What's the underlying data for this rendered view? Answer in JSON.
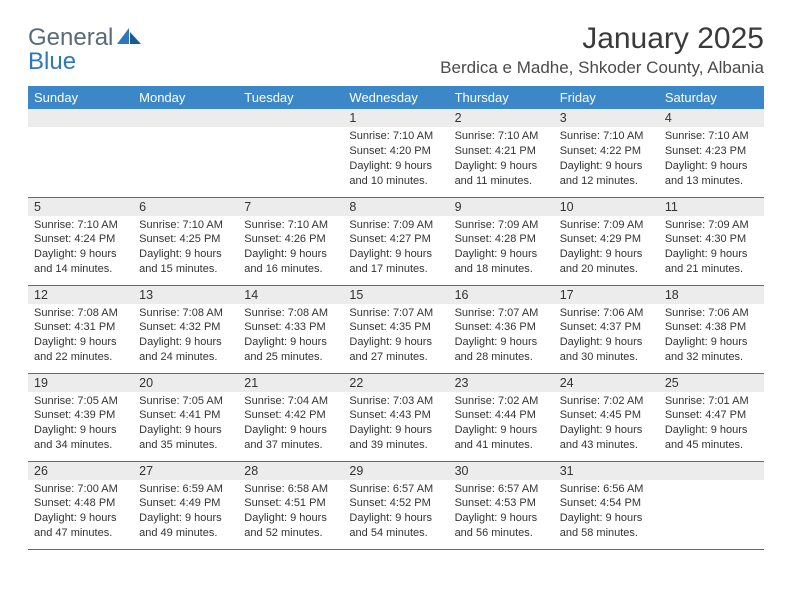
{
  "logo": {
    "word1": "General",
    "word2": "Blue"
  },
  "title": "January 2025",
  "location": "Berdica e Madhe, Shkoder County, Albania",
  "colors": {
    "header_bg": "#3b87c8",
    "header_text": "#ffffff",
    "daynum_bg": "#ececec",
    "rule": "#2d78bc",
    "logo_gray": "#5a6a78",
    "logo_blue": "#2d78bc"
  },
  "daysOfWeek": [
    "Sunday",
    "Monday",
    "Tuesday",
    "Wednesday",
    "Thursday",
    "Friday",
    "Saturday"
  ],
  "weeks": [
    [
      {
        "n": "",
        "sr": "",
        "ss": "",
        "dl1": "",
        "dl2": ""
      },
      {
        "n": "",
        "sr": "",
        "ss": "",
        "dl1": "",
        "dl2": ""
      },
      {
        "n": "",
        "sr": "",
        "ss": "",
        "dl1": "",
        "dl2": ""
      },
      {
        "n": "1",
        "sr": "Sunrise: 7:10 AM",
        "ss": "Sunset: 4:20 PM",
        "dl1": "Daylight: 9 hours",
        "dl2": "and 10 minutes."
      },
      {
        "n": "2",
        "sr": "Sunrise: 7:10 AM",
        "ss": "Sunset: 4:21 PM",
        "dl1": "Daylight: 9 hours",
        "dl2": "and 11 minutes."
      },
      {
        "n": "3",
        "sr": "Sunrise: 7:10 AM",
        "ss": "Sunset: 4:22 PM",
        "dl1": "Daylight: 9 hours",
        "dl2": "and 12 minutes."
      },
      {
        "n": "4",
        "sr": "Sunrise: 7:10 AM",
        "ss": "Sunset: 4:23 PM",
        "dl1": "Daylight: 9 hours",
        "dl2": "and 13 minutes."
      }
    ],
    [
      {
        "n": "5",
        "sr": "Sunrise: 7:10 AM",
        "ss": "Sunset: 4:24 PM",
        "dl1": "Daylight: 9 hours",
        "dl2": "and 14 minutes."
      },
      {
        "n": "6",
        "sr": "Sunrise: 7:10 AM",
        "ss": "Sunset: 4:25 PM",
        "dl1": "Daylight: 9 hours",
        "dl2": "and 15 minutes."
      },
      {
        "n": "7",
        "sr": "Sunrise: 7:10 AM",
        "ss": "Sunset: 4:26 PM",
        "dl1": "Daylight: 9 hours",
        "dl2": "and 16 minutes."
      },
      {
        "n": "8",
        "sr": "Sunrise: 7:09 AM",
        "ss": "Sunset: 4:27 PM",
        "dl1": "Daylight: 9 hours",
        "dl2": "and 17 minutes."
      },
      {
        "n": "9",
        "sr": "Sunrise: 7:09 AM",
        "ss": "Sunset: 4:28 PM",
        "dl1": "Daylight: 9 hours",
        "dl2": "and 18 minutes."
      },
      {
        "n": "10",
        "sr": "Sunrise: 7:09 AM",
        "ss": "Sunset: 4:29 PM",
        "dl1": "Daylight: 9 hours",
        "dl2": "and 20 minutes."
      },
      {
        "n": "11",
        "sr": "Sunrise: 7:09 AM",
        "ss": "Sunset: 4:30 PM",
        "dl1": "Daylight: 9 hours",
        "dl2": "and 21 minutes."
      }
    ],
    [
      {
        "n": "12",
        "sr": "Sunrise: 7:08 AM",
        "ss": "Sunset: 4:31 PM",
        "dl1": "Daylight: 9 hours",
        "dl2": "and 22 minutes."
      },
      {
        "n": "13",
        "sr": "Sunrise: 7:08 AM",
        "ss": "Sunset: 4:32 PM",
        "dl1": "Daylight: 9 hours",
        "dl2": "and 24 minutes."
      },
      {
        "n": "14",
        "sr": "Sunrise: 7:08 AM",
        "ss": "Sunset: 4:33 PM",
        "dl1": "Daylight: 9 hours",
        "dl2": "and 25 minutes."
      },
      {
        "n": "15",
        "sr": "Sunrise: 7:07 AM",
        "ss": "Sunset: 4:35 PM",
        "dl1": "Daylight: 9 hours",
        "dl2": "and 27 minutes."
      },
      {
        "n": "16",
        "sr": "Sunrise: 7:07 AM",
        "ss": "Sunset: 4:36 PM",
        "dl1": "Daylight: 9 hours",
        "dl2": "and 28 minutes."
      },
      {
        "n": "17",
        "sr": "Sunrise: 7:06 AM",
        "ss": "Sunset: 4:37 PM",
        "dl1": "Daylight: 9 hours",
        "dl2": "and 30 minutes."
      },
      {
        "n": "18",
        "sr": "Sunrise: 7:06 AM",
        "ss": "Sunset: 4:38 PM",
        "dl1": "Daylight: 9 hours",
        "dl2": "and 32 minutes."
      }
    ],
    [
      {
        "n": "19",
        "sr": "Sunrise: 7:05 AM",
        "ss": "Sunset: 4:39 PM",
        "dl1": "Daylight: 9 hours",
        "dl2": "and 34 minutes."
      },
      {
        "n": "20",
        "sr": "Sunrise: 7:05 AM",
        "ss": "Sunset: 4:41 PM",
        "dl1": "Daylight: 9 hours",
        "dl2": "and 35 minutes."
      },
      {
        "n": "21",
        "sr": "Sunrise: 7:04 AM",
        "ss": "Sunset: 4:42 PM",
        "dl1": "Daylight: 9 hours",
        "dl2": "and 37 minutes."
      },
      {
        "n": "22",
        "sr": "Sunrise: 7:03 AM",
        "ss": "Sunset: 4:43 PM",
        "dl1": "Daylight: 9 hours",
        "dl2": "and 39 minutes."
      },
      {
        "n": "23",
        "sr": "Sunrise: 7:02 AM",
        "ss": "Sunset: 4:44 PM",
        "dl1": "Daylight: 9 hours",
        "dl2": "and 41 minutes."
      },
      {
        "n": "24",
        "sr": "Sunrise: 7:02 AM",
        "ss": "Sunset: 4:45 PM",
        "dl1": "Daylight: 9 hours",
        "dl2": "and 43 minutes."
      },
      {
        "n": "25",
        "sr": "Sunrise: 7:01 AM",
        "ss": "Sunset: 4:47 PM",
        "dl1": "Daylight: 9 hours",
        "dl2": "and 45 minutes."
      }
    ],
    [
      {
        "n": "26",
        "sr": "Sunrise: 7:00 AM",
        "ss": "Sunset: 4:48 PM",
        "dl1": "Daylight: 9 hours",
        "dl2": "and 47 minutes."
      },
      {
        "n": "27",
        "sr": "Sunrise: 6:59 AM",
        "ss": "Sunset: 4:49 PM",
        "dl1": "Daylight: 9 hours",
        "dl2": "and 49 minutes."
      },
      {
        "n": "28",
        "sr": "Sunrise: 6:58 AM",
        "ss": "Sunset: 4:51 PM",
        "dl1": "Daylight: 9 hours",
        "dl2": "and 52 minutes."
      },
      {
        "n": "29",
        "sr": "Sunrise: 6:57 AM",
        "ss": "Sunset: 4:52 PM",
        "dl1": "Daylight: 9 hours",
        "dl2": "and 54 minutes."
      },
      {
        "n": "30",
        "sr": "Sunrise: 6:57 AM",
        "ss": "Sunset: 4:53 PM",
        "dl1": "Daylight: 9 hours",
        "dl2": "and 56 minutes."
      },
      {
        "n": "31",
        "sr": "Sunrise: 6:56 AM",
        "ss": "Sunset: 4:54 PM",
        "dl1": "Daylight: 9 hours",
        "dl2": "and 58 minutes."
      },
      {
        "n": "",
        "sr": "",
        "ss": "",
        "dl1": "",
        "dl2": ""
      }
    ]
  ]
}
